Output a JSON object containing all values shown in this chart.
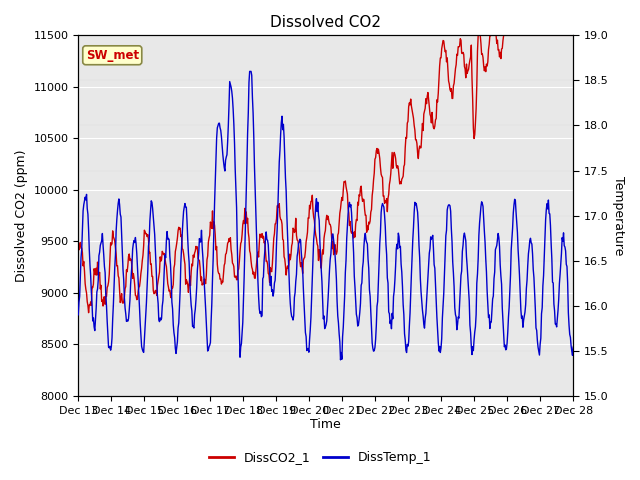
{
  "title": "Dissolved CO2",
  "xlabel": "Time",
  "ylabel_left": "Dissolved CO2 (ppm)",
  "ylabel_right": "Temperature",
  "ylim_left": [
    8000,
    11500
  ],
  "ylim_right": [
    15.0,
    19.0
  ],
  "yticks_left": [
    8000,
    8500,
    9000,
    9500,
    10000,
    10500,
    11000,
    11500
  ],
  "yticks_right": [
    15.0,
    15.5,
    16.0,
    16.5,
    17.0,
    17.5,
    18.0,
    18.5,
    19.0
  ],
  "xtick_labels": [
    "Dec 13",
    "Dec 14",
    "Dec 15",
    "Dec 16",
    "Dec 17",
    "Dec 18",
    "Dec 19",
    "Dec 20",
    "Dec 21",
    "Dec 22",
    "Dec 23",
    "Dec 24",
    "Dec 25",
    "Dec 26",
    "Dec 27",
    "Dec 28"
  ],
  "color_co2": "#cc0000",
  "color_temp": "#0000cc",
  "legend_labels": [
    "DissCO2_1",
    "DissTemp_1"
  ],
  "annotation_text": "SW_met",
  "annotation_color": "#cc0000",
  "annotation_bg": "#ffffcc",
  "annotation_border": "#888844",
  "plot_bg": "#e8e8e8",
  "fig_bg": "#ffffff",
  "grid_color": "#ffffff"
}
